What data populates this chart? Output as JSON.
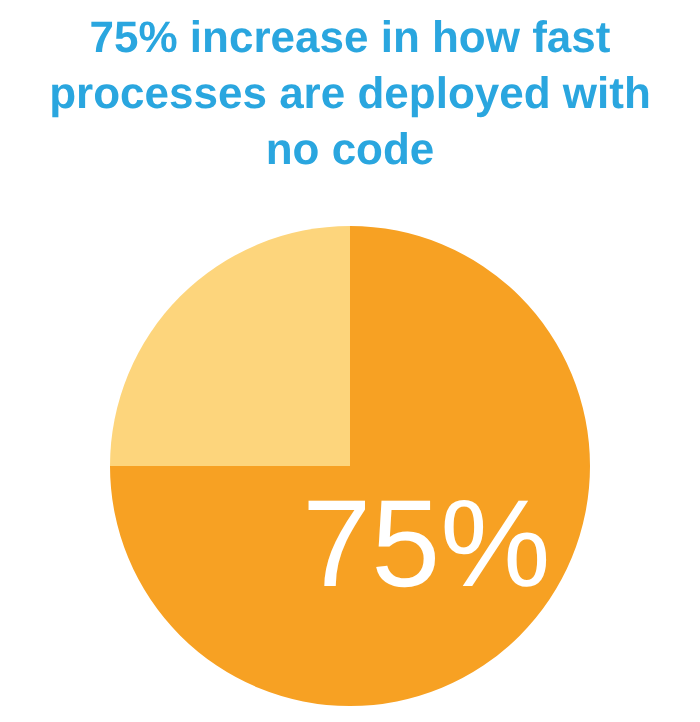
{
  "chart_data": {
    "type": "pie",
    "title": "75% increase in how fast processes are deployed with no code",
    "categories": [
      null,
      null
    ],
    "values": [
      75,
      25
    ],
    "colors": [
      "#f7a123",
      "#fdd57c"
    ],
    "value_labels": [
      "75%",
      null
    ]
  }
}
